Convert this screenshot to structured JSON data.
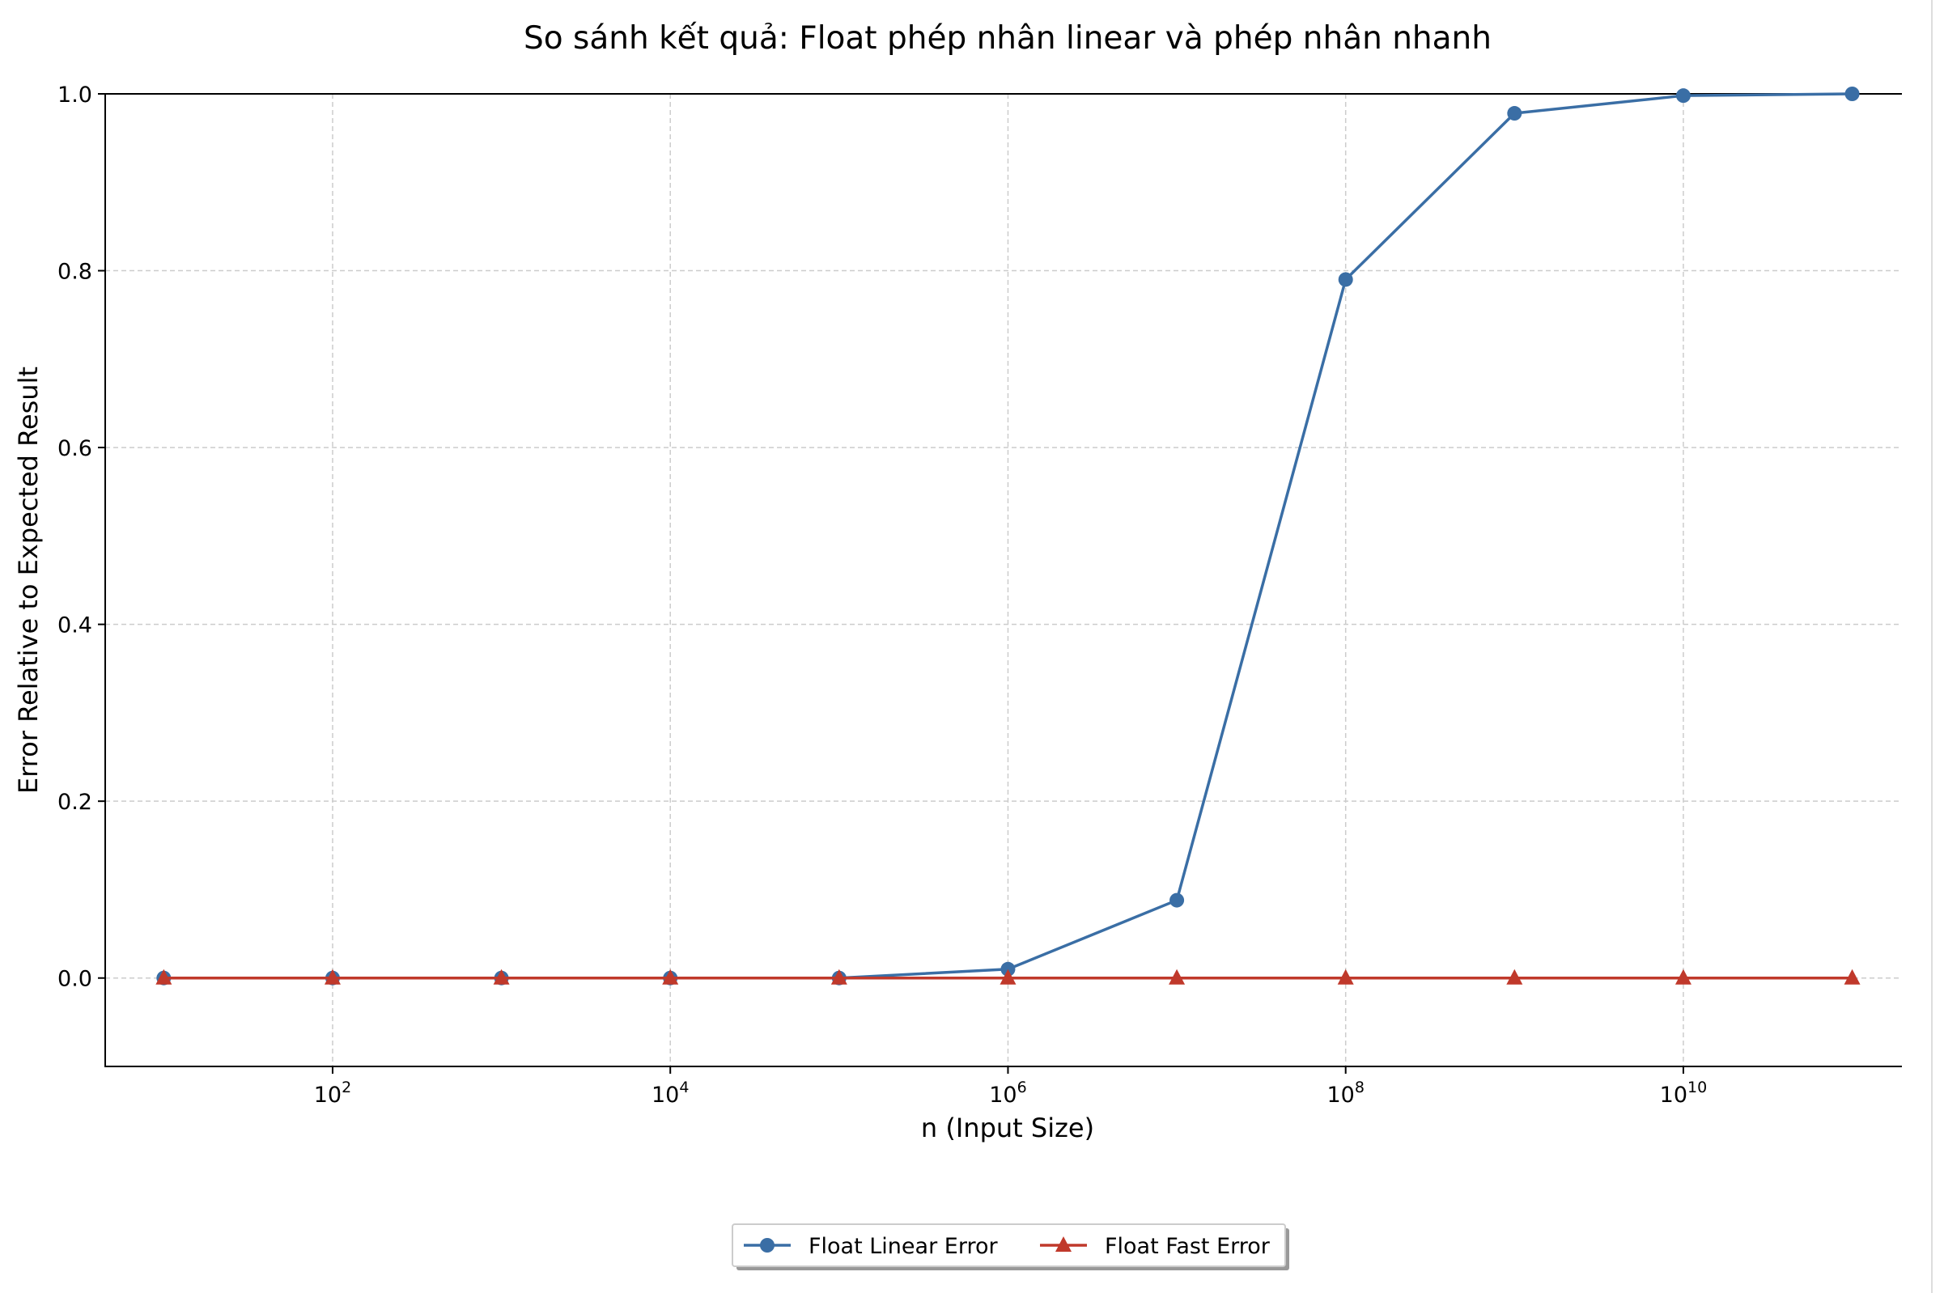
{
  "chart_data": {
    "type": "line",
    "title": "So sánh kết quả: Float phép nhân linear và phép nhân nhanh",
    "xlabel": "n (Input Size)",
    "ylabel": "Error Relative to Expected Result",
    "xscale": "log",
    "xlim": [
      4.5,
      220000000000.0
    ],
    "ylim": [
      -0.1,
      1.0
    ],
    "xticks": [
      {
        "value": 100,
        "base": "10",
        "exp": "2"
      },
      {
        "value": 10000,
        "base": "10",
        "exp": "4"
      },
      {
        "value": 1000000,
        "base": "10",
        "exp": "6"
      },
      {
        "value": 100000000,
        "base": "10",
        "exp": "8"
      },
      {
        "value": 10000000000,
        "base": "10",
        "exp": "10"
      }
    ],
    "yticks": [
      {
        "value": 0.0,
        "label": "0.0"
      },
      {
        "value": 0.2,
        "label": "0.2"
      },
      {
        "value": 0.4,
        "label": "0.4"
      },
      {
        "value": 0.6,
        "label": "0.6"
      },
      {
        "value": 0.8,
        "label": "0.8"
      },
      {
        "value": 1.0,
        "label": "1.0"
      }
    ],
    "grid": true,
    "legend_position": "bottom-center",
    "x": [
      10,
      100,
      1000,
      10000,
      100000,
      1000000,
      10000000,
      100000000,
      1000000000,
      10000000000,
      100000000000
    ],
    "series": [
      {
        "name": "Float Linear Error",
        "color": "#3a6ea5",
        "marker": "circle",
        "values": [
          0.0,
          0.0,
          0.0,
          0.0,
          0.0,
          0.01,
          0.088,
          0.79,
          0.978,
          0.998,
          1.0
        ]
      },
      {
        "name": "Float Fast Error",
        "color": "#c0392b",
        "marker": "triangle",
        "values": [
          0.0,
          0.0,
          0.0,
          0.0,
          0.0,
          0.0,
          0.0,
          0.0,
          0.0,
          0.0,
          0.0
        ]
      }
    ]
  }
}
